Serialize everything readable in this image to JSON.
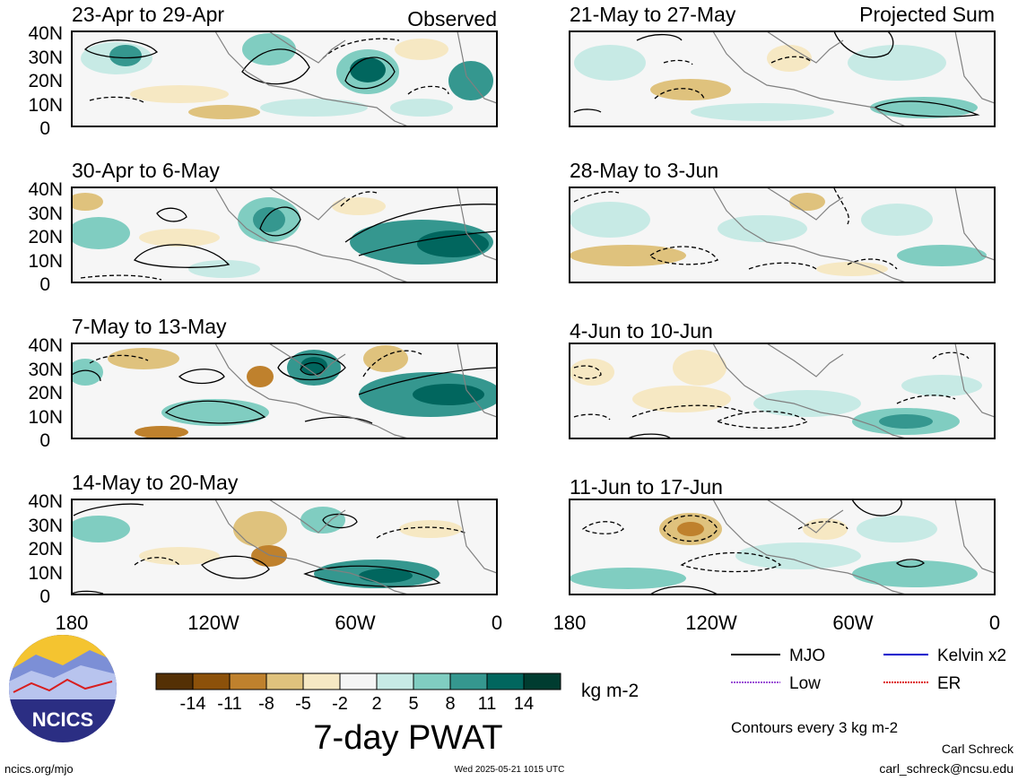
{
  "columns": {
    "observed_label": "Observed",
    "projected_label": "Projected Sum"
  },
  "panels": [
    {
      "id": "p1",
      "title": "23-Apr to 29-Apr",
      "column": "observed"
    },
    {
      "id": "p2",
      "title": "30-Apr to 6-May",
      "column": "observed"
    },
    {
      "id": "p3",
      "title": "7-May to 13-May",
      "column": "observed"
    },
    {
      "id": "p4",
      "title": "14-May to 20-May",
      "column": "observed"
    },
    {
      "id": "p5",
      "title": "21-May to 27-May",
      "column": "projected"
    },
    {
      "id": "p6",
      "title": "28-May to 3-Jun",
      "column": "projected"
    },
    {
      "id": "p7",
      "title": "4-Jun to 10-Jun",
      "column": "projected"
    },
    {
      "id": "p8",
      "title": "11-Jun to 17-Jun",
      "column": "projected"
    }
  ],
  "axes": {
    "lat_labels": [
      "40N",
      "30N",
      "20N",
      "10N",
      "0"
    ],
    "lon_labels": [
      "180",
      "120W",
      "60W",
      "0"
    ]
  },
  "colorbar": {
    "tick_labels": [
      "-14",
      "-11",
      "-8",
      "-5",
      "-2",
      "2",
      "5",
      "8",
      "11",
      "14"
    ],
    "colors": [
      "#543005",
      "#8c510a",
      "#bf812d",
      "#dfc27d",
      "#f6e8c3",
      "#f5f5f5",
      "#c7eae5",
      "#80cdc1",
      "#35978f",
      "#01665e",
      "#003c30"
    ],
    "units": "kg m-2",
    "title": "7-day PWAT"
  },
  "legend": {
    "items": [
      {
        "label": "MJO",
        "color": "#000000"
      },
      {
        "label": "Kelvin x2",
        "color": "#0000cc"
      },
      {
        "label": "Low",
        "color": "#9b4fd6"
      },
      {
        "label": "ER",
        "color": "#dd1111"
      }
    ],
    "contour_note": "Contours every 3 kg m-2"
  },
  "logo": {
    "text": "NCICS"
  },
  "footer": {
    "website": "ncics.org/mjo",
    "timestamp": "Wed 2025-05-21 1015 UTC",
    "author": "Carl Schreck",
    "email": "carl_schreck@ncsu.edu"
  }
}
